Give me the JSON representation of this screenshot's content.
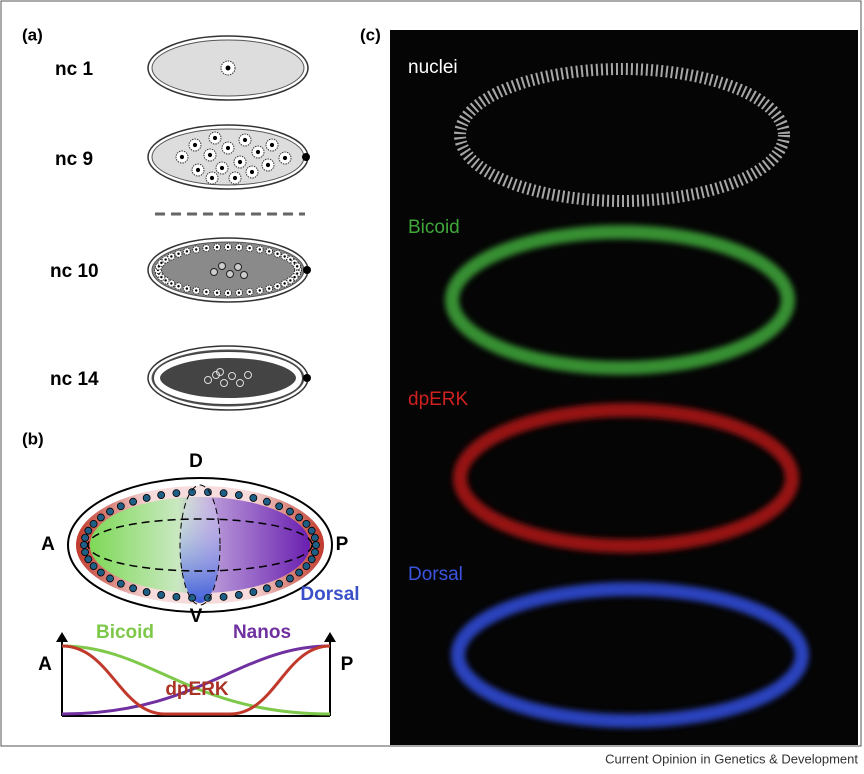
{
  "panel_a": {
    "label": "(a)",
    "stages": [
      "nc 1",
      "nc 9",
      "nc 10",
      "nc 14"
    ]
  },
  "panel_b": {
    "label": "(b)",
    "dorsal": "D",
    "anterior": "A",
    "posterior": "P",
    "ventral": "V",
    "dorsal_gradient": "Dorsal",
    "graph": {
      "anterior": "A",
      "posterior": "P",
      "bicoid": "Bicoid",
      "nanos": "Nanos",
      "dperk": "dpERK"
    }
  },
  "panel_c": {
    "label": "(c)",
    "stains": [
      "nuclei",
      "Bicoid",
      "dpERK",
      "Dorsal"
    ]
  },
  "footer": "Current Opinion in Genetics & Development"
}
